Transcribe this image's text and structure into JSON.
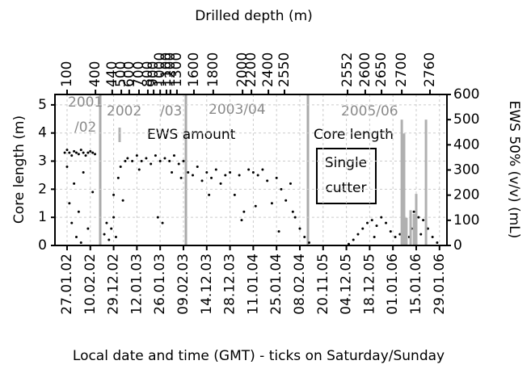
{
  "chart_data": {
    "type": "scatter",
    "title": "Drilled depth (m)",
    "xlabel": "Local date and time (GMT) - ticks on Saturday/Sunday",
    "ylabel": "Core length (m)",
    "y2label": "EWS 50% (v/v) (mL)",
    "xlim": [
      -0.52,
      16.32
    ],
    "ylim": [
      0,
      5.37
    ],
    "y2lim": [
      0,
      600
    ],
    "yticks": [
      0,
      1,
      2,
      3,
      4,
      5
    ],
    "y2ticks": [
      0,
      100,
      200,
      300,
      400,
      500,
      600
    ],
    "grid": true,
    "xticks": [
      {
        "value": 0,
        "label": "27.01.02"
      },
      {
        "value": 1,
        "label": "10.02.02"
      },
      {
        "value": 2,
        "label": "29.12.02"
      },
      {
        "value": 3,
        "label": "12.01.03"
      },
      {
        "value": 4,
        "label": "26.01.03"
      },
      {
        "value": 5,
        "label": "09.02.03"
      },
      {
        "value": 6,
        "label": "14.12.03"
      },
      {
        "value": 7,
        "label": "28.12.03"
      },
      {
        "value": 8,
        "label": "11.01.04"
      },
      {
        "value": 9,
        "label": "25.01.04"
      },
      {
        "value": 10,
        "label": "08.02.04"
      },
      {
        "value": 11,
        "label": "20.11.05"
      },
      {
        "value": 12,
        "label": "04.12.05"
      },
      {
        "value": 13,
        "label": "18.12.05"
      },
      {
        "value": 14,
        "label": "01.01.06"
      },
      {
        "value": 15,
        "label": "15.01.06"
      },
      {
        "value": 16,
        "label": "29.01.06"
      }
    ],
    "top_ticks": [
      {
        "value": 0,
        "label": "100"
      },
      {
        "value": 1.22,
        "label": "400"
      },
      {
        "value": 1.94,
        "label": "440"
      },
      {
        "value": 2.33,
        "label": "500"
      },
      {
        "value": 2.67,
        "label": "600"
      },
      {
        "value": 3.09,
        "label": "700"
      },
      {
        "value": 3.47,
        "label": "800"
      },
      {
        "value": 3.72,
        "label": "900"
      },
      {
        "value": 4.0,
        "label": "1000"
      },
      {
        "value": 4.27,
        "label": "1100"
      },
      {
        "value": 4.44,
        "label": "1200"
      },
      {
        "value": 4.72,
        "label": "1300"
      },
      {
        "value": 5.45,
        "label": "1600"
      },
      {
        "value": 6.28,
        "label": "1800"
      },
      {
        "value": 7.54,
        "label": "2000"
      },
      {
        "value": 7.92,
        "label": "2200"
      },
      {
        "value": 8.65,
        "label": "2400"
      },
      {
        "value": 9.34,
        "label": "2550"
      },
      {
        "value": 12.05,
        "label": "2552"
      },
      {
        "value": 12.81,
        "label": "2600"
      },
      {
        "value": 13.51,
        "label": "2650"
      },
      {
        "value": 14.38,
        "label": "2700"
      },
      {
        "value": 15.59,
        "label": "2760"
      }
    ],
    "annotations": [
      "2001",
      "/02",
      "2002",
      "/03",
      "2003/04",
      "2005/06",
      "Single",
      "cutter"
    ],
    "series": [
      {
        "name": "Core length",
        "color": "#000000",
        "x": [
          -0.1,
          0.0,
          0.1,
          0.2,
          0.3,
          0.4,
          0.5,
          0.6,
          0.7,
          0.8,
          0.9,
          1.0,
          1.1,
          1.2,
          0.0,
          0.1,
          0.2,
          0.3,
          0.4,
          0.5,
          0.6,
          0.7,
          0.9,
          1.1,
          1.6,
          1.7,
          1.8,
          1.9,
          2.0,
          2.1,
          2.0,
          2.2,
          2.3,
          2.5,
          2.6,
          2.8,
          3.0,
          3.2,
          3.4,
          3.6,
          3.8,
          4.0,
          4.2,
          4.4,
          4.6,
          4.8,
          5.0,
          2.4,
          3.1,
          3.9,
          4.1,
          4.5,
          4.9,
          5.2,
          5.4,
          5.6,
          5.8,
          6.0,
          6.2,
          6.4,
          6.6,
          6.8,
          7.0,
          7.2,
          7.4,
          7.6,
          7.8,
          8.0,
          8.2,
          8.4,
          8.6,
          8.8,
          9.0,
          9.2,
          9.4,
          9.6,
          9.8,
          10.0,
          10.2,
          10.4,
          6.1,
          7.5,
          8.1,
          9.1,
          9.7,
          12.1,
          12.3,
          12.5,
          12.7,
          12.9,
          13.1,
          13.3,
          13.5,
          13.7,
          13.9,
          14.1,
          14.3,
          14.5,
          14.7,
          14.9,
          15.1,
          15.3,
          15.5,
          15.7,
          15.9,
          13.2,
          14.8,
          15.2
        ],
        "values": [
          3.3,
          3.4,
          3.3,
          3.2,
          3.35,
          3.3,
          3.25,
          3.4,
          3.3,
          3.2,
          3.3,
          3.35,
          3.3,
          3.25,
          2.8,
          1.5,
          0.8,
          2.2,
          0.3,
          1.2,
          0.1,
          2.6,
          0.6,
          1.9,
          0.4,
          0.8,
          0.2,
          0.6,
          1.0,
          0.3,
          1.8,
          2.4,
          2.8,
          3.0,
          3.1,
          3.0,
          3.2,
          3.0,
          3.1,
          2.9,
          3.2,
          3.0,
          3.1,
          3.0,
          3.2,
          2.9,
          3.0,
          1.6,
          2.7,
          1.0,
          0.8,
          2.6,
          2.4,
          2.6,
          2.5,
          2.8,
          2.3,
          2.6,
          2.4,
          2.7,
          2.2,
          2.5,
          2.6,
          1.8,
          2.5,
          1.2,
          2.7,
          2.6,
          2.5,
          2.7,
          2.3,
          1.5,
          2.4,
          2.0,
          1.6,
          2.2,
          1.0,
          0.6,
          0.3,
          0.1,
          1.8,
          0.9,
          1.4,
          0.5,
          1.2,
          0.05,
          0.2,
          0.4,
          0.6,
          0.8,
          0.9,
          0.7,
          1.0,
          0.8,
          0.5,
          0.3,
          0.4,
          0.2,
          0.3,
          1.2,
          1.0,
          0.9,
          0.6,
          0.3,
          0.1,
          0.3,
          0.6,
          0.4
        ]
      },
      {
        "name": "EWS amount",
        "color": "#b0b0b0",
        "axis": "y2",
        "type": "bar",
        "x": [
          14.38,
          14.48,
          14.58,
          14.76,
          14.9,
          15.0,
          15.42
        ],
        "values": [
          500,
          445,
          110,
          140,
          125,
          205,
          500
        ]
      }
    ]
  }
}
